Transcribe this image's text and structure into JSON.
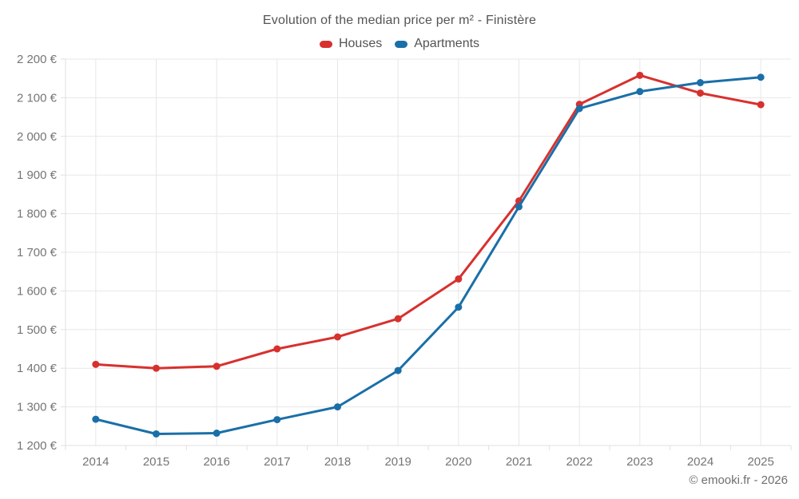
{
  "title": "Evolution of the median price per m² - Finistère",
  "footer": "© emooki.fr - 2026",
  "chart_data": {
    "type": "line",
    "title": "Evolution of the median price per m² - Finistère",
    "categories": [
      "2014",
      "2015",
      "2016",
      "2017",
      "2018",
      "2019",
      "2020",
      "2021",
      "2022",
      "2023",
      "2024",
      "2025"
    ],
    "series": [
      {
        "name": "Houses",
        "color": "#d7312e",
        "values": [
          1410,
          1400,
          1405,
          1450,
          1481,
          1528,
          1631,
          1833,
          2083,
          2158,
          2112,
          2082
        ]
      },
      {
        "name": "Apartments",
        "color": "#1a6fa8",
        "values": [
          1268,
          1230,
          1232,
          1267,
          1300,
          1394,
          1558,
          1818,
          2072,
          2116,
          2139,
          2153
        ]
      }
    ],
    "ylabel": "",
    "xlabel": "",
    "ylim": [
      1200,
      2200
    ],
    "y_tick_step": 100,
    "y_tick_labels": [
      "1 200 €",
      "1 300 €",
      "1 400 €",
      "1 500 €",
      "1 600 €",
      "1 700 €",
      "1 800 €",
      "1 900 €",
      "2 000 €",
      "2 100 €",
      "2 200 €"
    ],
    "grid": true,
    "legend_position": "top",
    "marker": "circle",
    "colors": {
      "grid": "#e7e7e7",
      "axis_line": "#e0e0e0",
      "axis_text": "#757575",
      "title_text": "#545454",
      "footer_text": "#6f6f6f"
    }
  }
}
